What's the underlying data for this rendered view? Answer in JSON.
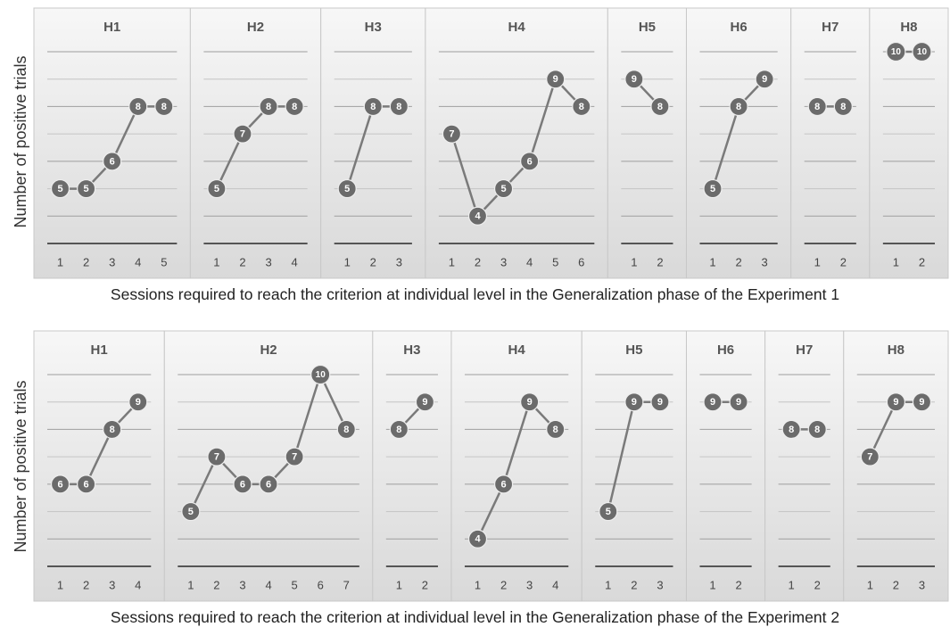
{
  "colors": {
    "marker": "#6b6b6b",
    "line": "#7a7a7a",
    "axis": "#555555",
    "panel_top": "#f7f7f7",
    "panel_bottom": "#d9d9d9"
  },
  "chart_data": [
    {
      "type": "line",
      "caption": "Sessions required to reach the criterion at individual level in the Generalization phase of the Experiment 1",
      "ylabel": "Number of positive trials",
      "ylim": [
        3,
        10
      ],
      "grid": true,
      "panels": [
        {
          "name": "H1",
          "x": [
            1,
            2,
            3,
            4,
            5
          ],
          "values": [
            5,
            5,
            6,
            8,
            8
          ]
        },
        {
          "name": "H2",
          "x": [
            1,
            2,
            3,
            4
          ],
          "values": [
            5,
            7,
            8,
            8
          ]
        },
        {
          "name": "H3",
          "x": [
            1,
            2,
            3
          ],
          "values": [
            5,
            8,
            8
          ]
        },
        {
          "name": "H4",
          "x": [
            1,
            2,
            3,
            4,
            5,
            6
          ],
          "values": [
            7,
            4,
            5,
            6,
            9,
            8
          ]
        },
        {
          "name": "H5",
          "x": [
            1,
            2
          ],
          "values": [
            9,
            8
          ]
        },
        {
          "name": "H6",
          "x": [
            1,
            2,
            3
          ],
          "values": [
            5,
            8,
            9
          ]
        },
        {
          "name": "H7",
          "x": [
            1,
            2
          ],
          "values": [
            8,
            8
          ]
        },
        {
          "name": "H8",
          "x": [
            1,
            2
          ],
          "values": [
            10,
            10
          ]
        }
      ]
    },
    {
      "type": "line",
      "caption": "Sessions required to reach the criterion at individual level in the Generalization phase of the Experiment 2",
      "ylabel": "Number of positive trials",
      "ylim": [
        3,
        10
      ],
      "grid": true,
      "panels": [
        {
          "name": "H1",
          "x": [
            1,
            2,
            3,
            4
          ],
          "values": [
            6,
            6,
            8,
            9
          ]
        },
        {
          "name": "H2",
          "x": [
            1,
            2,
            3,
            4,
            5,
            6,
            7
          ],
          "values": [
            5,
            7,
            6,
            6,
            7,
            10,
            8
          ]
        },
        {
          "name": "H3",
          "x": [
            1,
            2
          ],
          "values": [
            8,
            9
          ]
        },
        {
          "name": "H4",
          "x": [
            1,
            2,
            3,
            4
          ],
          "values": [
            4,
            6,
            9,
            8
          ]
        },
        {
          "name": "H5",
          "x": [
            1,
            2,
            3
          ],
          "values": [
            5,
            9,
            9
          ]
        },
        {
          "name": "H6",
          "x": [
            1,
            2
          ],
          "values": [
            9,
            9
          ]
        },
        {
          "name": "H7",
          "x": [
            1,
            2
          ],
          "values": [
            8,
            8
          ]
        },
        {
          "name": "H8",
          "x": [
            1,
            2,
            3
          ],
          "values": [
            7,
            9,
            9
          ]
        }
      ]
    }
  ]
}
